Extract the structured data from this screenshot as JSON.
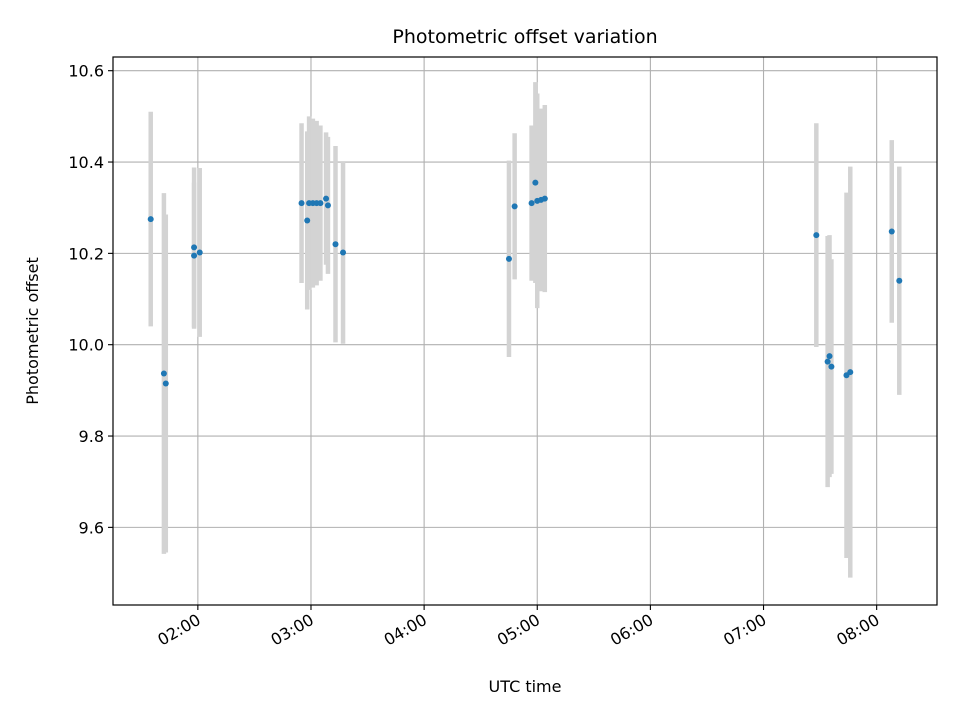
{
  "chart_data": {
    "type": "scatter",
    "title": "Photometric offset variation",
    "xlabel": "UTC time",
    "ylabel": "Photometric offset",
    "grid": true,
    "xlim": [
      "01:15",
      "08:32"
    ],
    "ylim": [
      9.43,
      10.63
    ],
    "x_ticks": [
      "02:00",
      "03:00",
      "04:00",
      "05:00",
      "06:00",
      "07:00",
      "08:00"
    ],
    "y_ticks": [
      "9.6",
      "9.8",
      "10.0",
      "10.2",
      "10.4",
      "10.6"
    ],
    "y_tick_values": [
      9.6,
      9.8,
      10.0,
      10.2,
      10.4,
      10.6
    ],
    "colors": {
      "marker": "#1f77b4",
      "errorbar": "#d3d3d3",
      "grid": "#b0b0b0"
    },
    "series": [
      {
        "points": [
          {
            "x": "01:35",
            "y": 10.275,
            "err": 0.235
          },
          {
            "x": "01:42",
            "y": 9.937,
            "err": 0.395
          },
          {
            "x": "01:43",
            "y": 9.915,
            "err": 0.37
          },
          {
            "x": "01:58",
            "y": 10.213,
            "err": 0.175
          },
          {
            "x": "01:58",
            "y": 10.195,
            "err": 0.16
          },
          {
            "x": "02:01",
            "y": 10.202,
            "err": 0.185
          },
          {
            "x": "02:55",
            "y": 10.31,
            "err": 0.175
          },
          {
            "x": "02:58",
            "y": 10.272,
            "err": 0.195
          },
          {
            "x": "02:59",
            "y": 10.31,
            "err": 0.19
          },
          {
            "x": "03:01",
            "y": 10.31,
            "err": 0.185
          },
          {
            "x": "03:03",
            "y": 10.31,
            "err": 0.18
          },
          {
            "x": "03:05",
            "y": 10.31,
            "err": 0.17
          },
          {
            "x": "03:08",
            "y": 10.32,
            "err": 0.145
          },
          {
            "x": "03:09",
            "y": 10.305,
            "err": 0.15
          },
          {
            "x": "03:13",
            "y": 10.22,
            "err": 0.215
          },
          {
            "x": "03:17",
            "y": 10.202,
            "err": 0.2
          },
          {
            "x": "04:45",
            "y": 10.188,
            "err": 0.215
          },
          {
            "x": "04:48",
            "y": 10.303,
            "err": 0.16
          },
          {
            "x": "04:57",
            "y": 10.31,
            "err": 0.17
          },
          {
            "x": "04:59",
            "y": 10.355,
            "err": 0.22
          },
          {
            "x": "05:00",
            "y": 10.315,
            "err": 0.235
          },
          {
            "x": "05:02",
            "y": 10.317,
            "err": 0.2
          },
          {
            "x": "05:04",
            "y": 10.32,
            "err": 0.205
          },
          {
            "x": "07:28",
            "y": 10.24,
            "err": 0.245
          },
          {
            "x": "07:34",
            "y": 9.963,
            "err": 0.275
          },
          {
            "x": "07:35",
            "y": 9.975,
            "err": 0.265
          },
          {
            "x": "07:36",
            "y": 9.952,
            "err": 0.235
          },
          {
            "x": "07:44",
            "y": 9.933,
            "err": 0.4
          },
          {
            "x": "07:46",
            "y": 9.94,
            "err": 0.45
          },
          {
            "x": "08:08",
            "y": 10.248,
            "err": 0.2
          },
          {
            "x": "08:12",
            "y": 10.14,
            "err": 0.25
          }
        ]
      }
    ]
  }
}
